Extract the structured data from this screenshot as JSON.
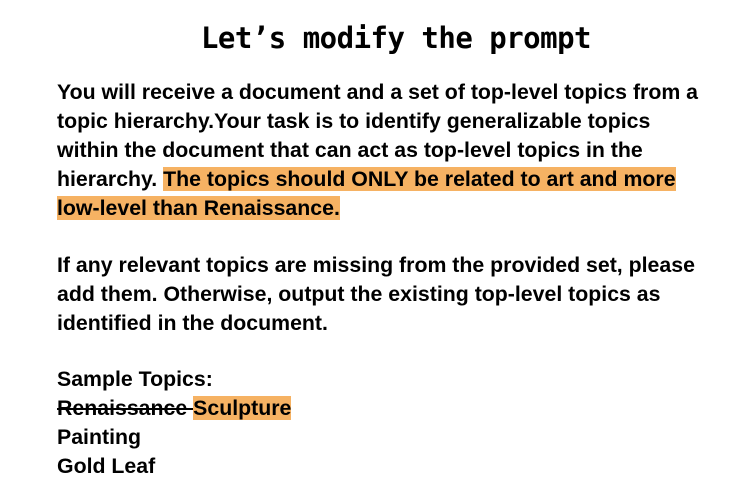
{
  "slide": {
    "title": "Let’s modify the prompt",
    "highlight_color": "#f6b263",
    "paragraph1": {
      "plain": "You will receive a document and a set of top-level topics from a topic hierarchy.Your task is to identify generalizable topics within the document that can act as top-level topics in the hierarchy. ",
      "highlighted": "The topics should ONLY be related to art and more low-level than Renaissance."
    },
    "paragraph2": "If any relevant topics are missing from the provided set, please add them. Otherwise, output the existing top-level topics as identified in the document.",
    "sample_topics": {
      "heading": "Sample Topics:",
      "struck_item": "Renaissance ",
      "replacement_item": "Sculpture",
      "items": [
        "Painting",
        "Gold Leaf"
      ]
    }
  }
}
